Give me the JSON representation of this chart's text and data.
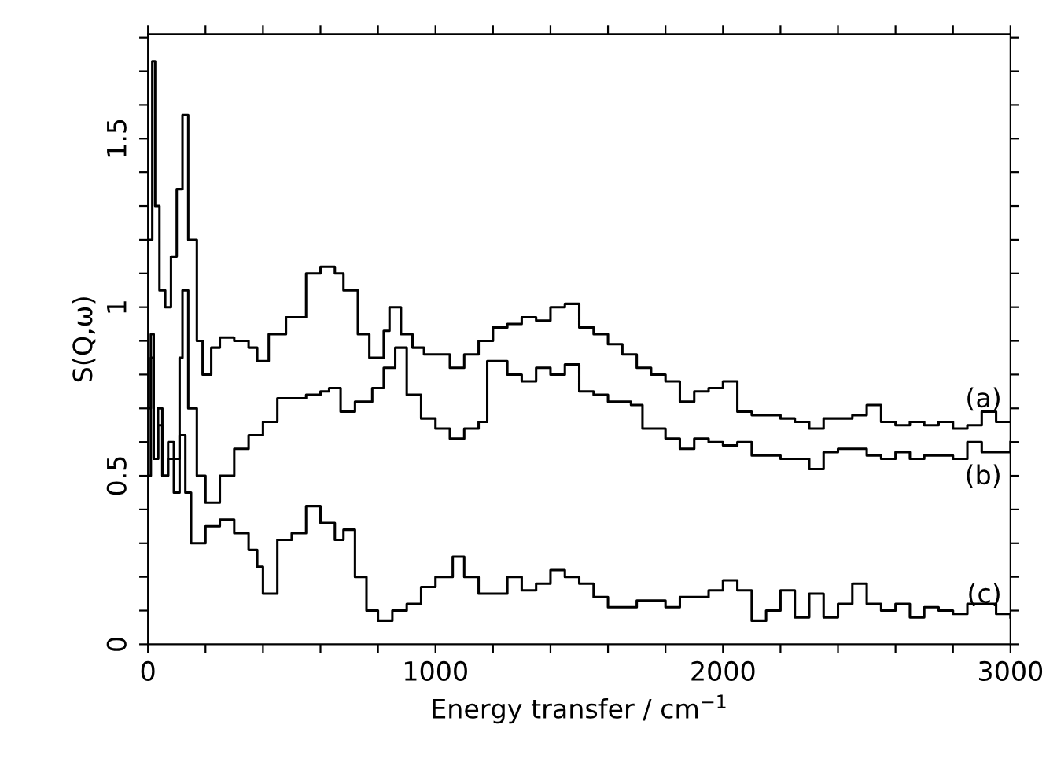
{
  "chart_data": {
    "type": "step",
    "xlabel": "Energy transfer / cm$^{−1}$",
    "ylabel": "S(Q,ω)",
    "xlim": [
      0,
      3000
    ],
    "ylim": [
      0,
      1.81
    ],
    "xticks": [
      0,
      {
        "value": 200,
        "label": null
      },
      {
        "value": 400,
        "label": null
      },
      {
        "value": 600,
        "label": null
      },
      {
        "value": 800,
        "label": null
      },
      1000,
      {
        "value": 1200,
        "label": null
      },
      {
        "value": 1400,
        "label": null
      },
      {
        "value": 1600,
        "label": null
      },
      {
        "value": 1800,
        "label": null
      },
      2000,
      {
        "value": 2200,
        "label": null
      },
      {
        "value": 2400,
        "label": null
      },
      {
        "value": 2600,
        "label": null
      },
      {
        "value": 2800,
        "label": null
      },
      3000
    ],
    "yticks": [
      0,
      {
        "value": 0.1,
        "label": null
      },
      {
        "value": 0.2,
        "label": null
      },
      {
        "value": 0.3,
        "label": null
      },
      {
        "value": 0.4,
        "label": null
      },
      0.5,
      {
        "value": 0.6,
        "label": null
      },
      {
        "value": 0.7,
        "label": null
      },
      {
        "value": 0.8,
        "label": null
      },
      {
        "value": 0.9,
        "label": null
      },
      1,
      {
        "value": 1.1,
        "label": null
      },
      {
        "value": 1.2,
        "label": null
      },
      {
        "value": 1.3,
        "label": null
      },
      {
        "value": 1.4,
        "label": null
      },
      1.5,
      {
        "value": 1.6,
        "label": null
      },
      {
        "value": 1.7,
        "label": null
      },
      {
        "value": 1.8,
        "label": null
      }
    ],
    "grid": false,
    "legend": "right",
    "marker": "none",
    "line_style": "solid",
    "series": [
      {
        "name": "(a)",
        "color": "#000000",
        "x": [
          0,
          15,
          25,
          40,
          60,
          80,
          100,
          120,
          140,
          170,
          190,
          220,
          250,
          300,
          350,
          380,
          420,
          480,
          550,
          600,
          650,
          680,
          730,
          770,
          820,
          840,
          880,
          920,
          960,
          1000,
          1050,
          1100,
          1150,
          1200,
          1250,
          1300,
          1350,
          1400,
          1450,
          1500,
          1550,
          1600,
          1650,
          1700,
          1750,
          1800,
          1850,
          1900,
          1950,
          2000,
          2050,
          2100,
          2150,
          2200,
          2250,
          2300,
          2350,
          2400,
          2450,
          2500,
          2550,
          2600,
          2650,
          2700,
          2750,
          2800,
          2850,
          2900,
          2950,
          3000
        ],
        "values": [
          1.2,
          1.73,
          1.3,
          1.05,
          1.0,
          1.15,
          1.35,
          1.57,
          1.2,
          0.9,
          0.8,
          0.88,
          0.91,
          0.9,
          0.88,
          0.84,
          0.92,
          0.97,
          1.1,
          1.12,
          1.1,
          1.05,
          0.92,
          0.85,
          0.93,
          1.0,
          0.92,
          0.88,
          0.86,
          0.86,
          0.82,
          0.86,
          0.9,
          0.94,
          0.95,
          0.97,
          0.96,
          1.0,
          1.01,
          0.94,
          0.92,
          0.89,
          0.86,
          0.82,
          0.8,
          0.78,
          0.72,
          0.75,
          0.76,
          0.78,
          0.69,
          0.68,
          0.68,
          0.67,
          0.66,
          0.64,
          0.67,
          0.67,
          0.68,
          0.71,
          0.66,
          0.65,
          0.66,
          0.65,
          0.66,
          0.64,
          0.65,
          0.69,
          0.66,
          0.66
        ]
      },
      {
        "name": "(b)",
        "color": "#000000",
        "x": [
          0,
          10,
          20,
          35,
          50,
          70,
          90,
          110,
          120,
          140,
          170,
          200,
          250,
          300,
          350,
          400,
          450,
          500,
          550,
          600,
          630,
          670,
          720,
          780,
          820,
          860,
          900,
          950,
          1000,
          1050,
          1100,
          1150,
          1180,
          1250,
          1300,
          1350,
          1400,
          1450,
          1500,
          1550,
          1600,
          1680,
          1720,
          1800,
          1850,
          1900,
          1950,
          2000,
          2050,
          2100,
          2200,
          2300,
          2350,
          2400,
          2450,
          2500,
          2550,
          2600,
          2650,
          2700,
          2750,
          2800,
          2850,
          2900,
          2950,
          3000
        ],
        "values": [
          0.7,
          0.92,
          0.55,
          0.65,
          0.5,
          0.6,
          0.55,
          0.85,
          1.05,
          0.7,
          0.5,
          0.42,
          0.5,
          0.58,
          0.62,
          0.66,
          0.73,
          0.73,
          0.74,
          0.75,
          0.76,
          0.69,
          0.72,
          0.76,
          0.82,
          0.88,
          0.74,
          0.67,
          0.64,
          0.61,
          0.64,
          0.66,
          0.84,
          0.8,
          0.78,
          0.82,
          0.8,
          0.83,
          0.75,
          0.74,
          0.72,
          0.71,
          0.64,
          0.61,
          0.58,
          0.61,
          0.6,
          0.59,
          0.6,
          0.56,
          0.55,
          0.52,
          0.57,
          0.58,
          0.58,
          0.56,
          0.55,
          0.57,
          0.55,
          0.56,
          0.56,
          0.55,
          0.6,
          0.57,
          0.57,
          0.6
        ]
      },
      {
        "name": "(c)",
        "color": "#000000",
        "x": [
          0,
          10,
          20,
          35,
          50,
          70,
          90,
          110,
          130,
          150,
          200,
          250,
          300,
          350,
          380,
          400,
          450,
          500,
          550,
          600,
          650,
          680,
          720,
          760,
          800,
          850,
          900,
          950,
          1000,
          1060,
          1100,
          1150,
          1200,
          1250,
          1300,
          1350,
          1400,
          1450,
          1500,
          1550,
          1600,
          1700,
          1800,
          1850,
          1950,
          2000,
          2050,
          2100,
          2150,
          2200,
          2250,
          2300,
          2350,
          2400,
          2450,
          2500,
          2550,
          2600,
          2650,
          2700,
          2750,
          2800,
          2850,
          2900,
          2950,
          3000
        ],
        "values": [
          0.5,
          0.85,
          0.55,
          0.7,
          0.5,
          0.55,
          0.45,
          0.62,
          0.45,
          0.3,
          0.35,
          0.37,
          0.33,
          0.28,
          0.23,
          0.15,
          0.31,
          0.33,
          0.41,
          0.36,
          0.31,
          0.34,
          0.2,
          0.1,
          0.07,
          0.1,
          0.12,
          0.17,
          0.2,
          0.26,
          0.2,
          0.15,
          0.15,
          0.2,
          0.16,
          0.18,
          0.22,
          0.2,
          0.18,
          0.14,
          0.11,
          0.13,
          0.11,
          0.14,
          0.16,
          0.19,
          0.16,
          0.07,
          0.1,
          0.16,
          0.08,
          0.15,
          0.08,
          0.12,
          0.18,
          0.12,
          0.1,
          0.12,
          0.08,
          0.11,
          0.1,
          0.09,
          0.12,
          0.12,
          0.09,
          0.08
        ]
      }
    ]
  }
}
